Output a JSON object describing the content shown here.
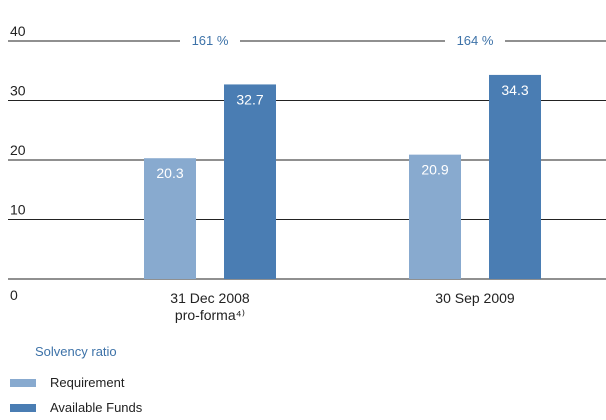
{
  "chart_data": {
    "type": "bar",
    "categories": [
      "31 Dec 2008\npro-forma⁴⁾",
      "30 Sep 2009"
    ],
    "series": [
      {
        "name": "Requirement",
        "values": [
          20.3,
          20.9
        ],
        "color": "#88aacf"
      },
      {
        "name": "Available Funds",
        "values": [
          32.7,
          34.3
        ],
        "color": "#4a7db3"
      }
    ],
    "ratio_label": "Solvency ratio",
    "ratios": [
      "161 %",
      "164 %"
    ],
    "ratio_color": "#3d72a8",
    "ylim": [
      0,
      40
    ],
    "yticks": [
      0,
      10,
      20,
      30,
      40
    ],
    "grid": true,
    "legend_position": "bottom-left"
  }
}
